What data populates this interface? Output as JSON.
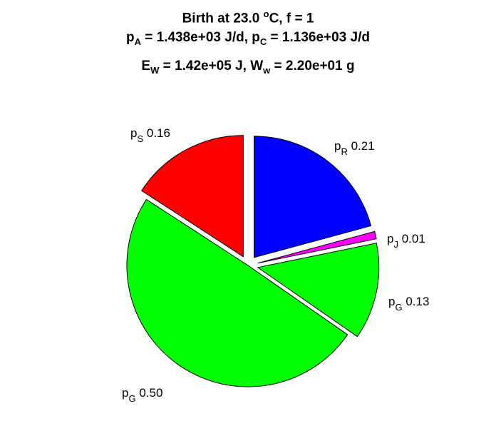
{
  "chart_data": {
    "type": "pie",
    "title_lines": [
      {
        "parts": [
          {
            "t": "Birth at 23.0 "
          },
          {
            "t": "o",
            "sup": true
          },
          {
            "t": "C, f = 1"
          }
        ]
      },
      {
        "parts": [
          {
            "t": "p"
          },
          {
            "t": "A",
            "sub": true
          },
          {
            "t": " = 1.438e+03 J/d, p"
          },
          {
            "t": "C",
            "sub": true
          },
          {
            "t": " = 1.136e+03 J/d"
          }
        ]
      },
      {
        "parts": [
          {
            "t": "E"
          },
          {
            "t": "W",
            "sub": true
          },
          {
            "t": " = 1.42e+05 J, W"
          },
          {
            "t": "w",
            "sub": true
          },
          {
            "t": " = 2.20e+01 g"
          }
        ]
      }
    ],
    "slices": [
      {
        "label": "p",
        "sub": "R",
        "value_text": "0.21",
        "value": 0.21,
        "color": "#0000ff",
        "exploded": true
      },
      {
        "label": "p",
        "sub": "J",
        "value_text": "0.01",
        "value": 0.01,
        "color": "#ff00ff",
        "exploded": true
      },
      {
        "label": "p",
        "sub": "G",
        "value_text": "0.13",
        "value": 0.13,
        "color": "#00ff00",
        "exploded": true
      },
      {
        "label": "p",
        "sub": "G",
        "value_text": "0.50",
        "value": 0.5,
        "color": "#00ff00",
        "exploded": false
      },
      {
        "label": "p",
        "sub": "S",
        "value_text": "0.16",
        "value": 0.16,
        "color": "#ff0000",
        "exploded": true
      }
    ]
  }
}
